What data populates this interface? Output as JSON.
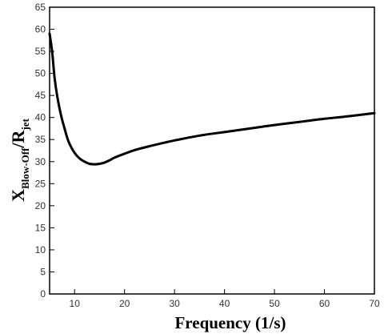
{
  "chart_data": {
    "type": "line",
    "title": "",
    "xlabel": "Frequency (1/s)",
    "ylabel": {
      "main_x": "X",
      "sub_x": "Blow-Off",
      "slash": "/",
      "main_r": "R",
      "sub_r": "jet"
    },
    "xlim": [
      5,
      70
    ],
    "ylim": [
      0,
      65
    ],
    "xticks": [
      10,
      20,
      30,
      40,
      50,
      60,
      70
    ],
    "yticks": [
      0,
      5,
      10,
      15,
      20,
      25,
      30,
      35,
      40,
      45,
      50,
      55,
      60,
      65
    ],
    "grid": false,
    "legend": "none",
    "line_color": "#000000",
    "series": [
      {
        "x": [
          5.0,
          5.5,
          6.0,
          6.5,
          7.0,
          7.5,
          8.0,
          8.5,
          9.0,
          10.0,
          11.0,
          12.0,
          13.0,
          14.0,
          15.0,
          16.0,
          17.0,
          18.0,
          20.0,
          22.0,
          25.0,
          28.0,
          30.0,
          35.0,
          40.0,
          45.0,
          50.0,
          55.0,
          60.0,
          65.0,
          70.0
        ],
        "y": [
          59.0,
          55.0,
          49.0,
          45.0,
          42.0,
          39.5,
          37.5,
          35.5,
          34.0,
          32.0,
          30.7,
          30.0,
          29.5,
          29.4,
          29.5,
          29.8,
          30.3,
          30.9,
          31.8,
          32.6,
          33.5,
          34.3,
          34.8,
          35.9,
          36.7,
          37.5,
          38.3,
          39.0,
          39.7,
          40.3,
          41.0
        ]
      }
    ]
  }
}
